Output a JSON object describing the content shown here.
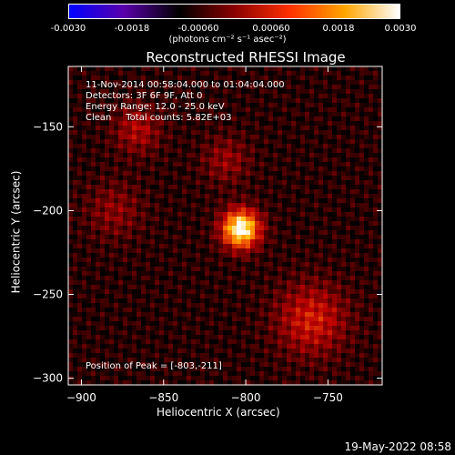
{
  "colorbar": {
    "ticks": [
      "-0.0030",
      "-0.0018",
      "-0.00060",
      "0.00060",
      "0.0018",
      "0.0030"
    ],
    "unit": "(photons cm⁻² s⁻¹ asec⁻²)",
    "colors": [
      "#0000ff",
      "#5a00aa",
      "#000000",
      "#8b0000",
      "#ff3000",
      "#ffa500",
      "#ffffff"
    ]
  },
  "info": {
    "line1": "11-Nov-2014 00:58:04.000 to 01:04:04.000",
    "line2": "Detectors: 3F 6F 9F, Att 0",
    "line3": "Energy Range: 12.0 - 25.0 keV",
    "line4": "Clean     Total counts: 5.82E+03"
  },
  "peak_text": "Position of Peak = [-803,-211]",
  "timestamp": "19-May-2022 08:58",
  "chart_data": {
    "type": "heatmap",
    "title": "Reconstructed RHESSI Image",
    "xlabel": "Heliocentric X (arcsec)",
    "ylabel": "Heliocentric Y (arcsec)",
    "xlim": [
      -908,
      -717
    ],
    "ylim": [
      -304,
      -114
    ],
    "xticks": [
      -900,
      -850,
      -800,
      -750
    ],
    "yticks": [
      -150,
      -200,
      -250,
      -300
    ],
    "xtick_labels": [
      "−900",
      "−850",
      "−800",
      "−750"
    ],
    "ytick_labels": [
      "−150",
      "−200",
      "−250",
      "−300"
    ],
    "peak": [
      -803,
      -211
    ],
    "sources": [
      {
        "x": -803,
        "y": -211,
        "amp": 1.0,
        "sigma": 8
      },
      {
        "x": -760,
        "y": -265,
        "amp": 0.38,
        "sigma": 15
      },
      {
        "x": -866,
        "y": -152,
        "amp": 0.28,
        "sigma": 10
      },
      {
        "x": -812,
        "y": -170,
        "amp": 0.22,
        "sigma": 10
      },
      {
        "x": -880,
        "y": -200,
        "amp": 0.2,
        "sigma": 12
      }
    ],
    "grid": false
  }
}
